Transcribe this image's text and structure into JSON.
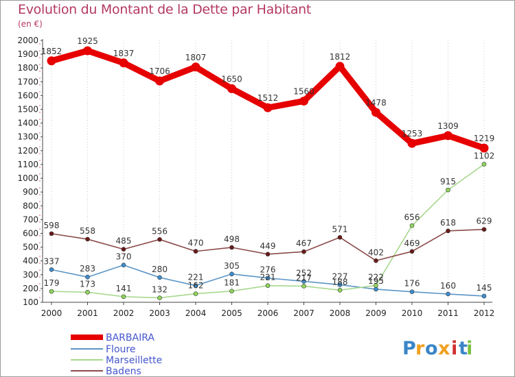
{
  "chart_data": {
    "type": "line",
    "title": "Evolution du Montant de la Dette par Habitant",
    "subtitle": "(en €)",
    "x": [
      "2000",
      "2001",
      "2002",
      "2003",
      "2004",
      "2005",
      "2006",
      "2007",
      "2008",
      "2009",
      "2010",
      "2011",
      "2012"
    ],
    "ylim": [
      100,
      2000
    ],
    "yticks": [
      100,
      200,
      300,
      400,
      500,
      600,
      700,
      800,
      900,
      1000,
      1100,
      1200,
      1300,
      1400,
      1500,
      1600,
      1700,
      1800,
      1900,
      2000
    ],
    "grid": "vertical dotted",
    "legend_position": "bottom-left",
    "series": [
      {
        "name": "BARBAIRA",
        "color": "#e60000",
        "values": [
          1852,
          1925,
          1837,
          1706,
          1807,
          1650,
          1512,
          1560,
          1812,
          1478,
          1253,
          1309,
          1219
        ]
      },
      {
        "name": "Floure",
        "color": "#5a95c6",
        "marker": "#3e8ed0",
        "values": [
          337,
          283,
          370,
          280,
          221,
          305,
          276,
          252,
          227,
          195,
          176,
          160,
          145
        ]
      },
      {
        "name": "Marseillette",
        "color": "#a6d88c",
        "marker": "#8fd65c",
        "values": [
          179,
          173,
          141,
          132,
          162,
          181,
          221,
          217,
          188,
          222,
          656,
          915,
          1102
        ]
      },
      {
        "name": "Badens",
        "color": "#8b4a4a",
        "marker": "#6b1a1a",
        "values": [
          598,
          558,
          485,
          556,
          470,
          498,
          449,
          467,
          571,
          402,
          469,
          618,
          629
        ]
      }
    ]
  },
  "brand": {
    "letters": [
      "P",
      "r",
      "o",
      "x",
      "i",
      "t",
      "i"
    ],
    "colors": [
      "#3a85c8",
      "#f0a020",
      "#3a85c8",
      "#f0a020",
      "#d03030",
      "#3a85c8",
      "#7cc242"
    ]
  }
}
